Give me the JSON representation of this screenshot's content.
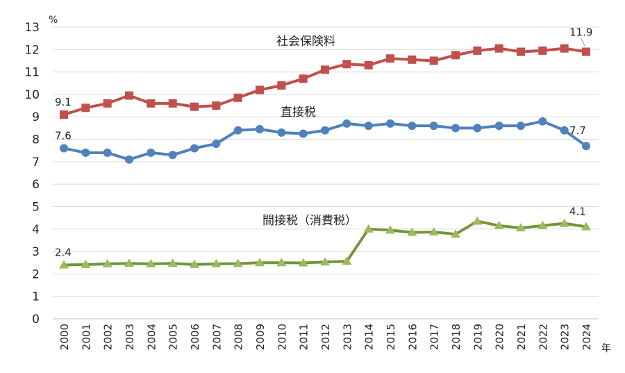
{
  "chart_data": {
    "type": "line",
    "title": "",
    "xlabel": "年",
    "ylabel": "%",
    "ylim": [
      0,
      13
    ],
    "yticks": [
      "0",
      "1",
      "2",
      "3",
      "4",
      "5",
      "6",
      "7",
      "8",
      "9",
      "10",
      "11",
      "12",
      "13"
    ],
    "grid": true,
    "x": [
      "2000",
      "2001",
      "2002",
      "2003",
      "2004",
      "2005",
      "2006",
      "2007",
      "2008",
      "2009",
      "2010",
      "2011",
      "2012",
      "2013",
      "2014",
      "2015",
      "2016",
      "2017",
      "2018",
      "2019",
      "2020",
      "2021",
      "2022",
      "2023",
      "2024"
    ],
    "series": [
      {
        "name": "社会保険料",
        "color": "#c0504d",
        "marker": "square",
        "values": [
          9.1,
          9.4,
          9.6,
          9.95,
          9.6,
          9.6,
          9.45,
          9.5,
          9.85,
          10.2,
          10.4,
          10.7,
          11.1,
          11.35,
          11.3,
          11.6,
          11.55,
          11.5,
          11.75,
          11.95,
          12.05,
          11.9,
          11.95,
          12.05,
          11.9
        ],
        "data_labels": {
          "first": "9.1",
          "last": "11.9"
        }
      },
      {
        "name": "直接税",
        "color": "#4f81bd",
        "marker": "circle",
        "values": [
          7.6,
          7.4,
          7.4,
          7.1,
          7.4,
          7.3,
          7.6,
          7.8,
          8.4,
          8.45,
          8.3,
          8.25,
          8.4,
          8.7,
          8.6,
          8.7,
          8.6,
          8.6,
          8.5,
          8.5,
          8.6,
          8.6,
          8.8,
          8.4,
          7.7
        ],
        "data_labels": {
          "first": "7.6",
          "last": "7.7"
        }
      },
      {
        "name": "間接税（消費税）",
        "color": "#77933c",
        "marker": "triangle",
        "values": [
          2.4,
          2.42,
          2.45,
          2.47,
          2.45,
          2.47,
          2.42,
          2.45,
          2.46,
          2.5,
          2.5,
          2.49,
          2.53,
          2.56,
          4.0,
          3.95,
          3.85,
          3.87,
          3.77,
          4.35,
          4.15,
          4.05,
          4.15,
          4.25,
          4.1
        ],
        "data_labels": {
          "first": "2.4",
          "last": "4.1"
        }
      }
    ]
  }
}
